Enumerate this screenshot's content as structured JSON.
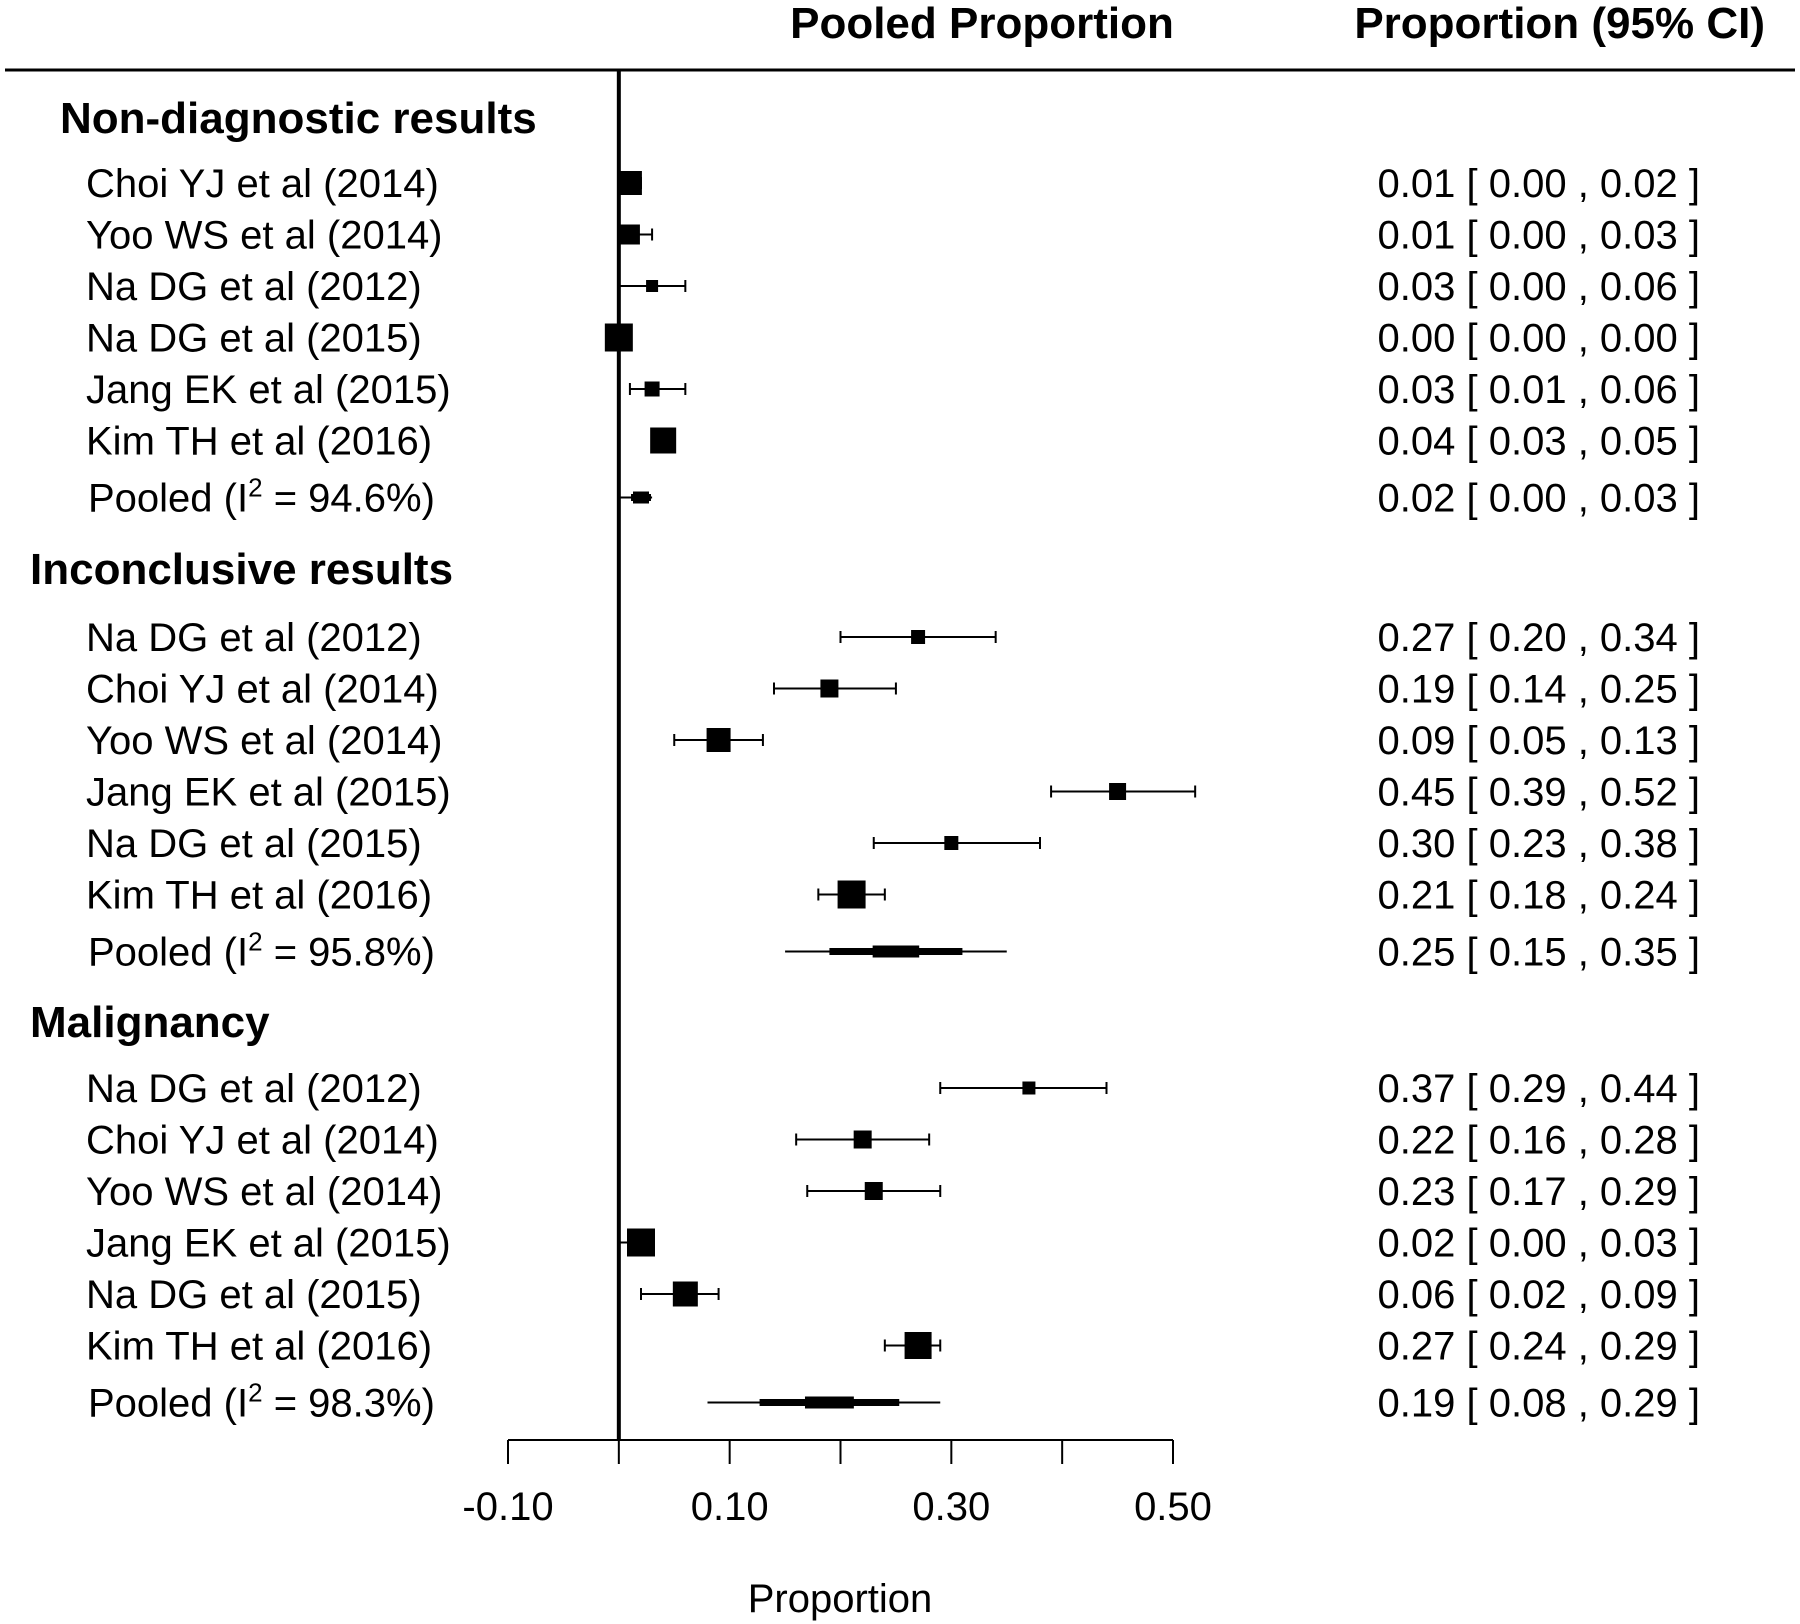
{
  "chart_data": {
    "type": "forest",
    "headers": {
      "plot": "Pooled Proportion",
      "ci": "Proportion (95% CI)"
    },
    "xlabel": "Proportion",
    "xlim": [
      -0.1,
      0.5
    ],
    "x_ticks": [
      -0.1,
      0.0,
      0.1,
      0.2,
      0.3,
      0.4,
      0.5
    ],
    "x_tick_labels": [
      "-0.10",
      "",
      "0.10",
      "",
      "0.30",
      "",
      "0.50"
    ],
    "reference_line": 0,
    "groups": [
      {
        "name": "Non-diagnostic results",
        "studies": [
          {
            "label": "Choi YJ et al (2014)",
            "est": 0.01,
            "lo": 0.0,
            "hi": 0.02,
            "ci_text": "0.01 [ 0.00 , 0.02 ]",
            "weight": 0.8
          },
          {
            "label": "Yoo WS et al (2014)",
            "est": 0.01,
            "lo": 0.0,
            "hi": 0.03,
            "ci_text": "0.01 [ 0.00 , 0.03 ]",
            "weight": 0.6
          },
          {
            "label": "Na DG et al (2012)",
            "est": 0.03,
            "lo": 0.0,
            "hi": 0.06,
            "ci_text": "0.03 [ 0.00 , 0.06 ]",
            "weight": 0.2
          },
          {
            "label": "Na DG et al (2015)",
            "est": 0.0,
            "lo": 0.0,
            "hi": 0.0,
            "ci_text": "0.00 [ 0.00 , 0.00 ]",
            "weight": 1.0
          },
          {
            "label": "Jang EK et al (2015)",
            "est": 0.03,
            "lo": 0.01,
            "hi": 0.06,
            "ci_text": "0.03 [ 0.01 , 0.06 ]",
            "weight": 0.35
          },
          {
            "label": "Kim TH et al (2016)",
            "est": 0.04,
            "lo": 0.03,
            "hi": 0.05,
            "ci_text": "0.04 [ 0.03 , 0.05 ]",
            "weight": 0.9
          }
        ],
        "pooled": {
          "label": "Pooled (I",
          "i2": "2",
          "label_tail": " = 94.6%)",
          "est": 0.02,
          "lo": 0.0,
          "hi": 0.03,
          "ci_text": "0.02 [ 0.00 , 0.03 ]"
        }
      },
      {
        "name": "Inconclusive results",
        "studies": [
          {
            "label": "Na DG et al (2012)",
            "est": 0.27,
            "lo": 0.2,
            "hi": 0.34,
            "ci_text": "0.27 [ 0.20 , 0.34 ]",
            "weight": 0.3
          },
          {
            "label": "Choi YJ et al (2014)",
            "est": 0.19,
            "lo": 0.14,
            "hi": 0.25,
            "ci_text": "0.19 [ 0.14 , 0.25 ]",
            "weight": 0.5
          },
          {
            "label": "Yoo WS et al (2014)",
            "est": 0.09,
            "lo": 0.05,
            "hi": 0.13,
            "ci_text": "0.09 [ 0.05 , 0.13 ]",
            "weight": 0.8
          },
          {
            "label": "Jang EK et al (2015)",
            "est": 0.45,
            "lo": 0.39,
            "hi": 0.52,
            "ci_text": "0.45 [ 0.39 , 0.52 ]",
            "weight": 0.45
          },
          {
            "label": "Na DG et al (2015)",
            "est": 0.3,
            "lo": 0.23,
            "hi": 0.38,
            "ci_text": "0.30 [ 0.23 , 0.38 ]",
            "weight": 0.3
          },
          {
            "label": "Kim TH et al (2016)",
            "est": 0.21,
            "lo": 0.18,
            "hi": 0.24,
            "ci_text": "0.21 [ 0.18 , 0.24 ]",
            "weight": 1.0
          }
        ],
        "pooled": {
          "label": "Pooled (I",
          "i2": "2",
          "label_tail": " = 95.8%)",
          "est": 0.25,
          "lo": 0.15,
          "hi": 0.35,
          "ci_text": "0.25 [ 0.15 , 0.35 ]"
        }
      },
      {
        "name": "Malignancy",
        "studies": [
          {
            "label": "Na DG et al (2012)",
            "est": 0.37,
            "lo": 0.29,
            "hi": 0.44,
            "ci_text": "0.37 [ 0.29 , 0.44 ]",
            "weight": 0.25
          },
          {
            "label": "Choi YJ et al (2014)",
            "est": 0.22,
            "lo": 0.16,
            "hi": 0.28,
            "ci_text": "0.22 [ 0.16 , 0.28 ]",
            "weight": 0.5
          },
          {
            "label": "Yoo WS et al (2014)",
            "est": 0.23,
            "lo": 0.17,
            "hi": 0.29,
            "ci_text": "0.23 [ 0.17 , 0.29 ]",
            "weight": 0.5
          },
          {
            "label": "Jang EK et al (2015)",
            "est": 0.02,
            "lo": 0.0,
            "hi": 0.03,
            "ci_text": "0.02 [ 0.00 , 0.03 ]",
            "weight": 1.0
          },
          {
            "label": "Na DG et al (2015)",
            "est": 0.06,
            "lo": 0.02,
            "hi": 0.09,
            "ci_text": "0.06 [ 0.02 , 0.09 ]",
            "weight": 0.85
          },
          {
            "label": "Kim TH et al (2016)",
            "est": 0.27,
            "lo": 0.24,
            "hi": 0.29,
            "ci_text": "0.27 [ 0.24 , 0.29 ]",
            "weight": 0.95
          }
        ],
        "pooled": {
          "label": "Pooled (I",
          "i2": "2",
          "label_tail": " = 98.3%)",
          "est": 0.19,
          "lo": 0.08,
          "hi": 0.29,
          "ci_text": "0.19 [ 0.08 , 0.29 ]"
        }
      }
    ]
  }
}
